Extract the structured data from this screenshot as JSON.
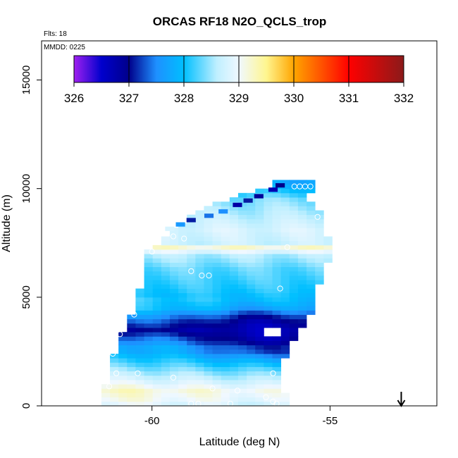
{
  "chart_data": {
    "type": "heatmap",
    "title": "ORCAS RF18 N2O_QCLS_trop",
    "flights_note": "Flts: 18",
    "date_note": "MMDD: 0225",
    "xlabel": "Latitude (deg N)",
    "ylabel": "Altitude (m)",
    "xlim": [
      -63.1,
      -52.0
    ],
    "ylim": [
      0,
      16800
    ],
    "x_ticks": [
      -60,
      -55
    ],
    "x_tick_labels": [
      "-60",
      "-55"
    ],
    "y_ticks": [
      0,
      5000,
      10000,
      15000
    ],
    "y_tick_labels": [
      "0",
      "5000",
      "10000",
      "15000"
    ],
    "colorbar": {
      "min": 326,
      "max": 332,
      "ticks": [
        326,
        327,
        328,
        329,
        330,
        331,
        332
      ],
      "tick_labels": [
        "326",
        "327",
        "328",
        "329",
        "330",
        "331",
        "332"
      ],
      "stops": [
        {
          "v": 326.0,
          "c": "#a020f0"
        },
        {
          "v": 326.5,
          "c": "#0000cd"
        },
        {
          "v": 327.0,
          "c": "#00008b"
        },
        {
          "v": 327.5,
          "c": "#1e90ff"
        },
        {
          "v": 328.0,
          "c": "#00bfff"
        },
        {
          "v": 328.6,
          "c": "#bfefff"
        },
        {
          "v": 329.0,
          "c": "#f0f8ff"
        },
        {
          "v": 329.5,
          "c": "#fff68f"
        },
        {
          "v": 330.0,
          "c": "#ffa500"
        },
        {
          "v": 331.0,
          "c": "#ff0000"
        },
        {
          "v": 332.0,
          "c": "#8b1a1a"
        }
      ]
    },
    "profile_envelope": [
      [
        0,
        -61.3,
        -56.2
      ],
      [
        1000,
        -61.3,
        -56.3
      ],
      [
        1500,
        -61.2,
        -56.3
      ],
      [
        2000,
        -61.2,
        -56.3
      ],
      [
        2500,
        -61.0,
        -56.1
      ],
      [
        3000,
        -61.0,
        -56.0
      ],
      [
        3500,
        -60.8,
        -55.8
      ],
      [
        4000,
        -60.6,
        -55.6
      ],
      [
        4500,
        -60.5,
        -55.4
      ],
      [
        5000,
        -60.4,
        -55.4
      ],
      [
        5500,
        -60.3,
        -55.3
      ],
      [
        6000,
        -60.3,
        -55.1
      ],
      [
        6500,
        -60.1,
        -55.1
      ],
      [
        7000,
        -60.2,
        -54.8
      ],
      [
        7500,
        -59.8,
        -55.0
      ],
      [
        8000,
        -59.5,
        -55.1
      ],
      [
        8500,
        -59.1,
        -55.2
      ],
      [
        9000,
        -58.7,
        -55.3
      ],
      [
        9500,
        -57.9,
        -55.6
      ],
      [
        10000,
        -56.8,
        -55.5
      ],
      [
        10300,
        -56.5,
        -55.5
      ]
    ],
    "field_anchors": [
      {
        "alt": 0,
        "value": 328.9
      },
      {
        "alt": 250,
        "value": 329.1
      },
      {
        "alt": 700,
        "value": 329.25
      },
      {
        "alt": 1200,
        "value": 328.85
      },
      {
        "alt": 1800,
        "value": 328.4
      },
      {
        "alt": 2500,
        "value": 327.9
      },
      {
        "alt": 3100,
        "value": 327.3
      },
      {
        "alt": 3500,
        "value": 326.8
      },
      {
        "alt": 4000,
        "value": 327.3
      },
      {
        "alt": 4500,
        "value": 327.9
      },
      {
        "alt": 5300,
        "value": 328.1
      },
      {
        "alt": 6300,
        "value": 328.3
      },
      {
        "alt": 7000,
        "value": 328.6
      },
      {
        "alt": 7250,
        "value": 329.3
      },
      {
        "alt": 7500,
        "value": 328.7
      },
      {
        "alt": 8100,
        "value": 328.8
      },
      {
        "alt": 8800,
        "value": 328.6
      },
      {
        "alt": 9500,
        "value": 328.4
      },
      {
        "alt": 10200,
        "value": 327.8
      }
    ],
    "low_core": {
      "lat": -57.0,
      "alt": 3400,
      "value": 326.6
    },
    "gap": {
      "lat_min": -56.9,
      "lat_max": -56.35,
      "alt_min": 3200,
      "alt_max": 3500
    },
    "upper_step_cells": [
      {
        "lat": -56.4,
        "alt": 10100,
        "value": 327.0
      },
      {
        "lat": -56.6,
        "alt": 9900,
        "value": 326.7
      },
      {
        "lat": -57.0,
        "alt": 9600,
        "value": 326.9
      },
      {
        "lat": -57.3,
        "alt": 9400,
        "value": 327.1
      },
      {
        "lat": -57.6,
        "alt": 9200,
        "value": 326.8
      },
      {
        "lat": -58.0,
        "alt": 8900,
        "value": 327.5
      },
      {
        "lat": -58.4,
        "alt": 8700,
        "value": 327.4
      },
      {
        "lat": -58.9,
        "alt": 8500,
        "value": 327.1
      },
      {
        "lat": -59.2,
        "alt": 8300,
        "value": 327.6
      },
      {
        "lat": -59.5,
        "alt": 8100,
        "value": 328.8
      }
    ],
    "sample_points": [
      {
        "lat": -56.0,
        "alt": 10100
      },
      {
        "lat": -55.85,
        "alt": 10100
      },
      {
        "lat": -55.7,
        "alt": 10100
      },
      {
        "lat": -55.55,
        "alt": 10100
      },
      {
        "lat": -55.35,
        "alt": 8700
      },
      {
        "lat": -59.4,
        "alt": 7800
      },
      {
        "lat": -59.1,
        "alt": 7700
      },
      {
        "lat": -56.2,
        "alt": 7300
      },
      {
        "lat": -60.0,
        "alt": 7100
      },
      {
        "lat": -58.9,
        "alt": 6200
      },
      {
        "lat": -58.6,
        "alt": 6000
      },
      {
        "lat": -58.4,
        "alt": 6000
      },
      {
        "lat": -56.4,
        "alt": 5400
      },
      {
        "lat": -60.5,
        "alt": 4200
      },
      {
        "lat": -60.9,
        "alt": 3300
      },
      {
        "lat": -56.5,
        "alt": 3400
      },
      {
        "lat": -61.1,
        "alt": 2400
      },
      {
        "lat": -56.6,
        "alt": 1500
      },
      {
        "lat": -60.4,
        "alt": 1500
      },
      {
        "lat": -61.0,
        "alt": 1500
      },
      {
        "lat": -59.4,
        "alt": 1300
      },
      {
        "lat": -61.2,
        "alt": 900
      },
      {
        "lat": -58.3,
        "alt": 800
      },
      {
        "lat": -57.6,
        "alt": 700
      },
      {
        "lat": -56.8,
        "alt": 400
      },
      {
        "lat": -56.6,
        "alt": 200
      },
      {
        "lat": -56.5,
        "alt": 100
      },
      {
        "lat": -58.9,
        "alt": 100
      },
      {
        "lat": -58.7,
        "alt": 100
      },
      {
        "lat": -57.8,
        "alt": 100
      }
    ],
    "arrow_marker": {
      "lat": -53.0,
      "direction": "down"
    }
  }
}
